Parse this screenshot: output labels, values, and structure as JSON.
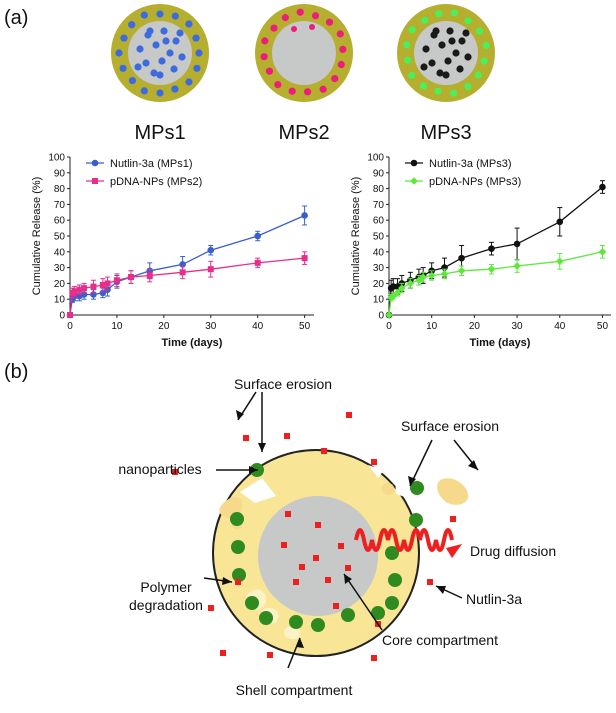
{
  "panel_a": {
    "label": "(a)",
    "particles": [
      {
        "name": "MPs1",
        "core_color": "#c7c8c8",
        "shell_color": "#b5ae2e",
        "np_color": "#3c6be0",
        "core_np": true,
        "shell_np": true
      },
      {
        "name": "MPs2",
        "core_color": "#c7c8c8",
        "shell_color": "#b5ae2e",
        "np_color": "#ec1e79",
        "core_np": false,
        "shell_np": true
      },
      {
        "name": "MPs3",
        "core_color": "#c7c8c8",
        "shell_color": "#b5ae2e",
        "np_color_core": "#1a1a1a",
        "np_color_shell": "#4dee5c",
        "core_np": true,
        "shell_np": true
      }
    ]
  },
  "panel_b": {
    "label": "(b)",
    "labels": {
      "surface_erosion_top": "Surface erosion",
      "surface_erosion_right": "Surface erosion",
      "nanoparticles": "nanoparticles",
      "drug_diffusion": "Drug diffusion",
      "polymer_degradation_1": "Polymer",
      "polymer_degradation_2": "degradation",
      "nutlin": "Nutlin-3a",
      "core": "Core compartment",
      "shell": "Shell compartment"
    },
    "colors": {
      "shell": "#f8e596",
      "core": "#c7c8c8",
      "np": "#2f8b1f",
      "drug": "#ee1f1f",
      "erosion": "#f6d98a"
    }
  },
  "chart_data": [
    {
      "type": "line",
      "title": "",
      "xlabel": "Time (days)",
      "ylabel": "Cumulative Release (%)",
      "xlim": [
        0,
        52
      ],
      "ylim": [
        0,
        100
      ],
      "xticks": [
        0,
        10,
        20,
        30,
        40,
        50
      ],
      "yticks": [
        0,
        10,
        20,
        30,
        40,
        50,
        60,
        70,
        80,
        90,
        100
      ],
      "legend_position": "top-left",
      "series": [
        {
          "name": "Nutlin-3a (MPs1)",
          "color": "#3a5fcd",
          "x": [
            0,
            0.5,
            1,
            2,
            3,
            5,
            7,
            8,
            10,
            13,
            17,
            24,
            30,
            40,
            50
          ],
          "y": [
            0,
            10,
            12,
            12,
            13,
            13,
            14,
            16,
            21,
            24,
            28,
            32,
            41,
            50,
            63
          ],
          "err": [
            0,
            2,
            3,
            3,
            3,
            3,
            3,
            4,
            4,
            4,
            5,
            5,
            3,
            3,
            6
          ]
        },
        {
          "name": "pDNA-NPs (MPs2)",
          "color": "#e62e8b",
          "x": [
            0,
            0.5,
            1,
            2,
            3,
            5,
            7,
            8,
            10,
            13,
            17,
            24,
            30,
            40,
            50
          ],
          "y": [
            0,
            14,
            15,
            16,
            17,
            18,
            19,
            20,
            22,
            24,
            25,
            27,
            29,
            33,
            36
          ],
          "err": [
            0,
            3,
            3,
            3,
            3,
            4,
            4,
            4,
            4,
            4,
            4,
            4,
            5,
            3,
            4
          ]
        }
      ]
    },
    {
      "type": "line",
      "title": "",
      "xlabel": "Time (days)",
      "ylabel": "Cumulative Release (%)",
      "xlim": [
        0,
        52
      ],
      "ylim": [
        0,
        100
      ],
      "xticks": [
        0,
        10,
        20,
        30,
        40,
        50
      ],
      "yticks": [
        0,
        10,
        20,
        30,
        40,
        50,
        60,
        70,
        80,
        90,
        100
      ],
      "legend_position": "top-left",
      "series": [
        {
          "name": "Nutlin-3a (MPs3)",
          "color": "#111111",
          "x": [
            0,
            0.5,
            1,
            2,
            3,
            5,
            7,
            8,
            10,
            13,
            17,
            24,
            30,
            40,
            50
          ],
          "y": [
            0,
            17,
            18,
            18,
            20,
            22,
            24,
            25,
            28,
            30,
            36,
            42,
            45,
            59,
            81
          ],
          "err": [
            0,
            5,
            5,
            5,
            5,
            5,
            5,
            5,
            5,
            6,
            8,
            4,
            10,
            9,
            4
          ]
        },
        {
          "name": "pDNA-NPs (MPs3)",
          "color": "#5fe83c",
          "x": [
            0,
            0.5,
            1,
            2,
            3,
            5,
            7,
            8,
            10,
            13,
            17,
            24,
            30,
            40,
            50
          ],
          "y": [
            0,
            11,
            12,
            14,
            17,
            20,
            22,
            24,
            25,
            26,
            28,
            29,
            31,
            34,
            40
          ],
          "err": [
            0,
            2,
            2,
            2,
            3,
            3,
            3,
            3,
            3,
            3,
            3,
            3,
            4,
            5,
            4
          ]
        }
      ]
    }
  ]
}
